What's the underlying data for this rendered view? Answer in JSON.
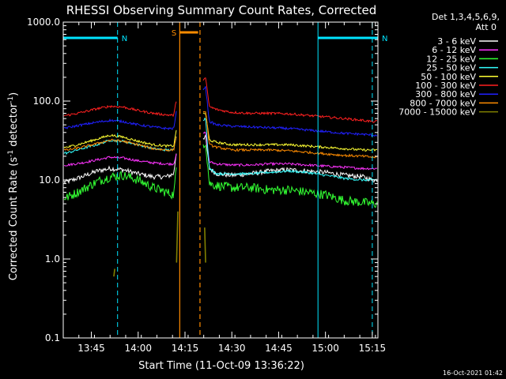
{
  "chart_data": {
    "type": "line",
    "title": "RHESSI Observing Summary Count Rates, Corrected",
    "xlabel": "Start Time (11-Oct-09 13:36:22)",
    "ylabel": "Corrected Count Rate (s",
    "ylabel_sup": "-1",
    "ylabel_tail": " detector",
    "ylabel_tail_sup": "-1",
    "ylabel_end": ")",
    "yscale": "log",
    "ylim": [
      0.1,
      1000
    ],
    "xlim_minutes": [
      13.6,
      15.28
    ],
    "y_ticks": [
      "0.1",
      "1.0",
      "10.0",
      "100.0",
      "1000.0"
    ],
    "x_ticks": [
      "13:45",
      "14:00",
      "14:15",
      "14:30",
      "14:45",
      "15:00",
      "15:15"
    ],
    "x_tick_values": [
      13.75,
      14.0,
      14.25,
      14.5,
      14.75,
      15.0,
      15.25
    ],
    "detector_label": "Det 1,3,4,5,6,9,",
    "attenuator_label": "Att 0",
    "footer_date": "16-Oct-2021 01:42",
    "flags": [
      {
        "label": "N",
        "color": "#00e5ff",
        "start": 13.6,
        "end": 13.89
      },
      {
        "label": "N",
        "color": "#00e5ff",
        "start": 14.96,
        "end": 15.28
      },
      {
        "label": "S",
        "color": "#ff8c00",
        "start": 14.22,
        "end": 14.32
      }
    ],
    "night_starts": [
      14.96
    ],
    "night_ends": [
      13.89,
      15.25
    ],
    "saa_start": 14.222,
    "saa_end": 14.33,
    "series": [
      {
        "name": "3 - 6 keV",
        "color": "#ffffff",
        "x": [
          13.62,
          13.7,
          13.78,
          13.85,
          13.92,
          14.0,
          14.08,
          14.15,
          14.19,
          14.21,
          14.36,
          14.38,
          14.42,
          14.5,
          14.6,
          14.7,
          14.8,
          14.9,
          15.0,
          15.1,
          15.2,
          15.25
        ],
        "y": [
          9.5,
          11,
          13,
          14,
          13.5,
          12,
          11,
          11,
          12,
          30,
          35,
          14,
          12,
          11.5,
          12,
          13,
          13.5,
          13,
          12.5,
          11.5,
          11,
          10
        ]
      },
      {
        "name": "6 - 12 keV",
        "color": "#ff33ff",
        "x": [
          13.62,
          13.7,
          13.78,
          13.85,
          13.92,
          14.0,
          14.08,
          14.15,
          14.19,
          14.21,
          14.36,
          14.38,
          14.42,
          14.5,
          14.6,
          14.7,
          14.8,
          14.9,
          15.0,
          15.1,
          15.2,
          15.25
        ],
        "y": [
          15.5,
          16.5,
          18,
          19.5,
          19,
          17.5,
          16.5,
          16,
          16,
          25,
          40,
          17,
          16,
          15.5,
          15.5,
          16,
          16,
          15.5,
          15,
          14.5,
          14,
          14
        ]
      },
      {
        "name": "12 - 25 keV",
        "color": "#33ff33",
        "x": [
          13.62,
          13.7,
          13.78,
          13.85,
          13.92,
          14.0,
          14.08,
          14.15,
          14.19,
          14.21,
          14.36,
          14.38,
          14.42,
          14.5,
          14.6,
          14.7,
          14.8,
          14.9,
          15.0,
          15.1,
          15.2,
          15.25
        ],
        "y": [
          6,
          7.5,
          9.5,
          11,
          11.5,
          10,
          8,
          7,
          6.5,
          20,
          30,
          9,
          8.5,
          8,
          8,
          7.5,
          7.5,
          7,
          6.5,
          5.5,
          5.2,
          5
        ]
      },
      {
        "name": "25 - 50 keV",
        "color": "#33ffff",
        "x": [
          13.62,
          13.7,
          13.78,
          13.85,
          13.92,
          14.0,
          14.08,
          14.15,
          14.19,
          14.21,
          14.36,
          14.38,
          14.42,
          14.5,
          14.6,
          14.7,
          14.8,
          14.9,
          15.0,
          15.1,
          15.2,
          15.25
        ],
        "y": [
          22,
          25,
          28,
          32,
          31,
          28,
          25,
          24,
          24,
          45,
          60,
          14,
          12,
          12,
          12,
          12.5,
          13,
          12.5,
          11.5,
          10.5,
          10,
          10
        ]
      },
      {
        "name": "50 - 100 keV",
        "color": "#ffff33",
        "x": [
          13.62,
          13.7,
          13.78,
          13.85,
          13.92,
          14.0,
          14.08,
          14.15,
          14.19,
          14.21,
          14.36,
          14.38,
          14.42,
          14.5,
          14.6,
          14.7,
          14.8,
          14.9,
          15.0,
          15.1,
          15.2,
          15.25
        ],
        "y": [
          26,
          29,
          33,
          37,
          35,
          31,
          28,
          27,
          27,
          55,
          70,
          32,
          30,
          28,
          28,
          28,
          28,
          27,
          26,
          25,
          24,
          24
        ]
      },
      {
        "name": "100 - 300 keV",
        "color": "#ff2020",
        "x": [
          13.62,
          13.7,
          13.78,
          13.85,
          13.92,
          14.0,
          14.08,
          14.15,
          14.19,
          14.21,
          14.36,
          14.38,
          14.42,
          14.5,
          14.6,
          14.7,
          14.8,
          14.9,
          15.0,
          15.1,
          15.2,
          15.25
        ],
        "y": [
          66,
          72,
          80,
          86,
          84,
          76,
          70,
          67,
          66,
          125,
          195,
          85,
          78,
          72,
          70,
          70,
          69,
          66,
          63,
          60,
          57,
          55
        ]
      },
      {
        "name": "300 - 800 keV",
        "color": "#2020ff",
        "x": [
          13.62,
          13.7,
          13.78,
          13.85,
          13.92,
          14.0,
          14.08,
          14.15,
          14.19,
          14.21,
          14.36,
          14.38,
          14.42,
          14.5,
          14.6,
          14.7,
          14.8,
          14.9,
          15.0,
          15.1,
          15.2,
          15.25
        ],
        "y": [
          46,
          50,
          54,
          57,
          55,
          50,
          47,
          45,
          45,
          90,
          150,
          55,
          50,
          48,
          47,
          46,
          45,
          43,
          41,
          39,
          38,
          37
        ]
      },
      {
        "name": "800 - 7000 keV",
        "color": "#ff8c00",
        "x": [
          13.62,
          13.7,
          13.78,
          13.85,
          13.92,
          14.0,
          14.08,
          14.15,
          14.19,
          14.21,
          14.36,
          14.38,
          14.42,
          14.5,
          14.6,
          14.7,
          14.8,
          14.9,
          15.0,
          15.1,
          15.2,
          15.25
        ],
        "y": [
          24,
          26,
          29,
          32,
          31,
          28,
          25,
          24,
          24,
          45,
          75,
          28,
          26,
          24,
          24,
          24,
          23.5,
          22.5,
          21.5,
          20.5,
          20,
          19.5
        ]
      },
      {
        "name": "7000 - 15000 keV",
        "color": "#808000",
        "x": [
          13.87,
          13.875,
          14.205,
          14.212,
          14.355,
          14.36
        ],
        "y": [
          0.6,
          0.75,
          0.9,
          4.0,
          2.5,
          0.9
        ]
      }
    ]
  }
}
